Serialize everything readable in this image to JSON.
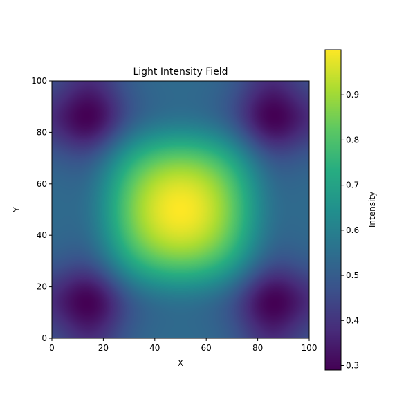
{
  "chart_data": {
    "type": "heatmap",
    "title": "Light Intensity Field",
    "xlabel": "X",
    "ylabel": "Y",
    "xlim": [
      0,
      100
    ],
    "ylim": [
      0,
      100
    ],
    "x_ticks": [
      0,
      20,
      40,
      60,
      80,
      100
    ],
    "y_ticks": [
      0,
      20,
      40,
      60,
      80,
      100
    ],
    "colormap": "viridis",
    "field": {
      "description_model": "central bright peak with dark minima near the four corners",
      "peak": {
        "x": 50,
        "y": 50,
        "value": 1.0
      },
      "minima": [
        {
          "x": 15,
          "y": 15,
          "value": 0.29
        },
        {
          "x": 85,
          "y": 15,
          "value": 0.29
        },
        {
          "x": 15,
          "y": 85,
          "value": 0.29
        },
        {
          "x": 85,
          "y": 85,
          "value": 0.29
        }
      ],
      "vmin": 0.29,
      "vmax": 1.0
    },
    "colorbar": {
      "label": "Intensity",
      "ticks": [
        "0.3",
        "0.4",
        "0.5",
        "0.6",
        "0.7",
        "0.8",
        "0.9"
      ],
      "tick_values": [
        0.3,
        0.4,
        0.5,
        0.6,
        0.7,
        0.8,
        0.9
      ],
      "range": [
        0.29,
        1.0
      ]
    }
  }
}
